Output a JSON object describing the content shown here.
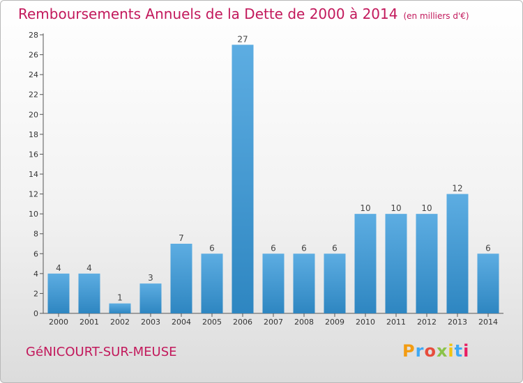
{
  "header": {
    "title": "Remboursements Annuels de la Dette de 2000 à 2014",
    "unit": "(en milliers d'€)"
  },
  "footer": {
    "commune": "GéNICOURT-SUR-MEUSE",
    "logo_text": "Proxiti",
    "logo_colors": [
      "#f39c12",
      "#3fa9f5",
      "#e74c3c",
      "#8bc34a",
      "#f1c40f",
      "#3fa9f5",
      "#e91e63"
    ]
  },
  "colors": {
    "bar_top": "#5dade2",
    "bar_bottom": "#2e86c1",
    "title": "#c2185b"
  },
  "chart_data": {
    "type": "bar",
    "title": "Remboursements Annuels de la Dette de 2000 à 2014",
    "xlabel": "",
    "ylabel": "",
    "categories": [
      "2000",
      "2001",
      "2002",
      "2003",
      "2004",
      "2005",
      "2006",
      "2007",
      "2008",
      "2009",
      "2010",
      "2011",
      "2012",
      "2013",
      "2014"
    ],
    "values": [
      4,
      4,
      1,
      3,
      7,
      6,
      27,
      6,
      6,
      6,
      10,
      10,
      10,
      12,
      6
    ],
    "ylim": [
      0,
      28
    ],
    "yticks": [
      0,
      2,
      4,
      6,
      8,
      10,
      12,
      14,
      16,
      18,
      20,
      22,
      24,
      26,
      28
    ],
    "grid": false,
    "data_labels": true
  }
}
